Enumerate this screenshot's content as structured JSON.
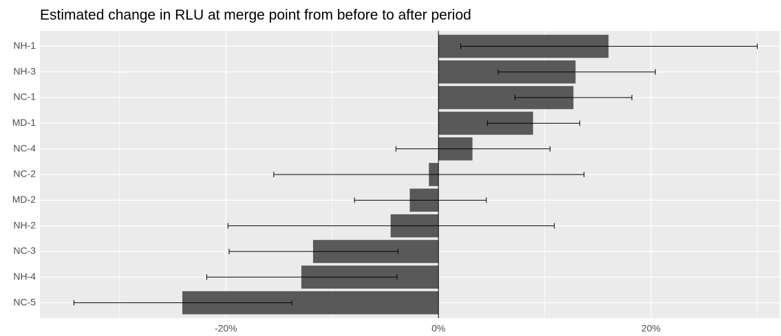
{
  "chart_data": {
    "type": "barh_error",
    "title": "Estimated change in RLU at merge point from before to after period",
    "categories": [
      "NH-1",
      "NH-3",
      "NC-1",
      "MD-1",
      "NC-4",
      "NC-2",
      "MD-2",
      "NH-2",
      "NC-3",
      "NH-4",
      "NC-5"
    ],
    "values": [
      16.0,
      12.9,
      12.7,
      8.9,
      3.2,
      -0.9,
      -2.7,
      -4.5,
      -11.8,
      -12.9,
      -24.1
    ],
    "lower": [
      2.1,
      5.6,
      7.2,
      4.6,
      -4.0,
      -15.5,
      -7.9,
      -19.8,
      -19.7,
      -21.8,
      -34.3
    ],
    "upper": [
      30.0,
      20.4,
      18.2,
      13.3,
      10.5,
      13.7,
      4.5,
      10.9,
      -3.8,
      -3.9,
      -13.8
    ],
    "color": "#595959",
    "xlim": [
      -37.5,
      32.1
    ],
    "xticks": [
      {
        "value": -20,
        "label": "-20%"
      },
      {
        "value": 0,
        "label": "0%"
      },
      {
        "value": 20,
        "label": "20%"
      }
    ],
    "xminorticks": [
      -30,
      -10,
      10,
      30
    ],
    "vline": 0,
    "grid": true
  }
}
